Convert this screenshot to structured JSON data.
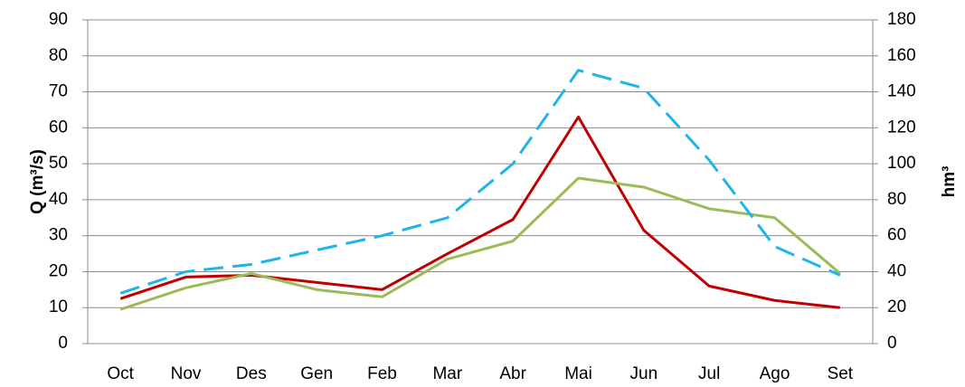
{
  "chart_data": {
    "type": "line",
    "y_label": "Q (m³/s)",
    "y2_label": "hm³",
    "categories": [
      "Oct",
      "Nov",
      "Des",
      "Gen",
      "Feb",
      "Mar",
      "Abr",
      "Mai",
      "Jun",
      "Jul",
      "Ago",
      "Set"
    ],
    "series": [
      {
        "color": "#c00000",
        "line_style": "solid",
        "axis": "y",
        "values": [
          12.5,
          18.5,
          19,
          17,
          15,
          25,
          34.5,
          63,
          31.5,
          16,
          12,
          10
        ]
      },
      {
        "color": "#9bbb59",
        "line_style": "solid",
        "axis": "y",
        "values": [
          9.5,
          15.5,
          19.5,
          15,
          13,
          23.5,
          28.5,
          46,
          43.5,
          37.5,
          35,
          19.5
        ]
      },
      {
        "color": "#1fb5ea",
        "line_style": "dashed",
        "axis": "y2",
        "values": [
          28,
          40,
          44,
          52,
          60,
          70,
          100,
          152,
          142,
          102,
          54,
          38
        ]
      }
    ],
    "ylim": [
      0,
      90
    ],
    "yticks": [
      0,
      10,
      20,
      30,
      40,
      50,
      60,
      70,
      80,
      90
    ],
    "y2lim": [
      0,
      180
    ],
    "y2ticks": [
      0,
      20,
      40,
      60,
      80,
      100,
      120,
      140,
      160,
      180
    ],
    "grid": true
  }
}
